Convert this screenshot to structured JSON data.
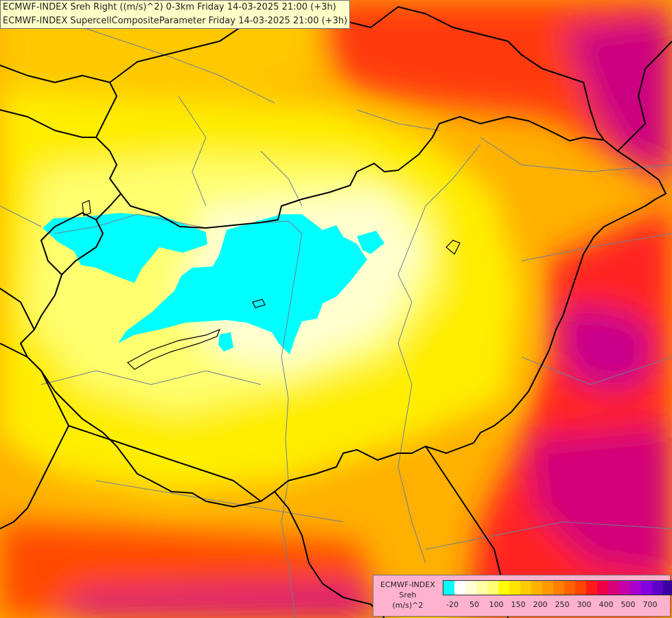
{
  "header": {
    "line1": "ECMWF-INDEX Sreh Right ((m/s)^2) 0-3km Friday 14-03-2025 21:00 (+3h)",
    "line2": "ECMWF-INDEX SupercellCompositeParameter Friday 14-03-2025 21:00 (+3h)"
  },
  "legend": {
    "title": "ECMWF-INDEX",
    "param": "Sreh",
    "unit": "(m/s)^2",
    "ticks": [
      "-20",
      "50",
      "100",
      "150",
      "200",
      "250",
      "300",
      "400",
      "500",
      "700"
    ],
    "colors": [
      "#00ffff",
      "#ffffff",
      "#ffffd8",
      "#ffffa8",
      "#ffff78",
      "#ffff00",
      "#ffe600",
      "#ffcc00",
      "#ffb300",
      "#ff9900",
      "#ff8000",
      "#ff6200",
      "#ff4500",
      "#ff1a1a",
      "#ef0046",
      "#d80078",
      "#c400a6",
      "#a800d0",
      "#8400e0",
      "#5e00c8",
      "#3c00a0",
      "#1c0070"
    ]
  }
}
